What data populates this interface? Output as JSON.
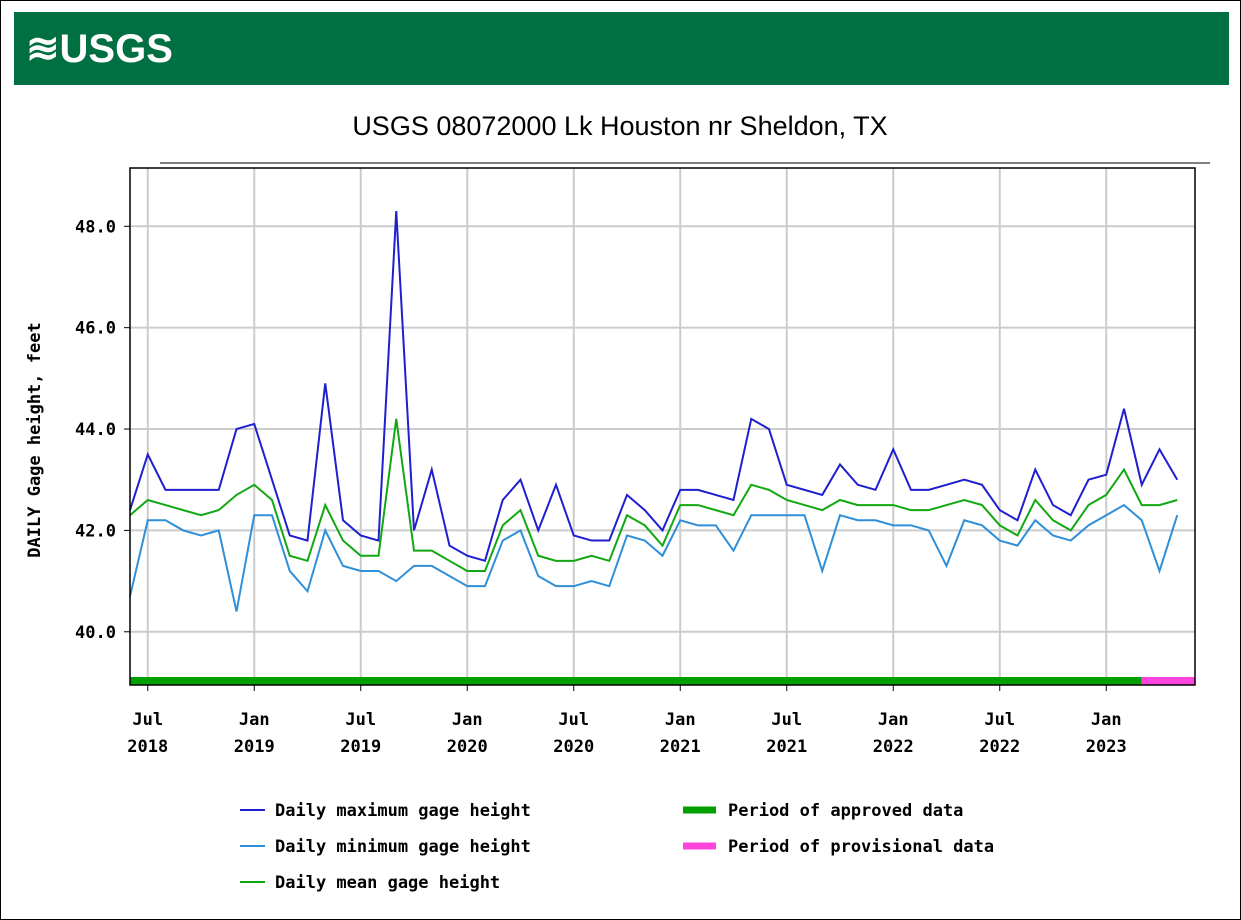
{
  "header": {
    "logo": "≋USGS"
  },
  "chart_data": {
    "type": "line",
    "title": "USGS 08072000 Lk Houston nr Sheldon, TX",
    "ylabel": "DAILY Gage height, feet",
    "x": [
      "2018-06",
      "2018-07",
      "2018-08",
      "2018-09",
      "2018-10",
      "2018-11",
      "2018-12",
      "2019-01",
      "2019-02",
      "2019-03",
      "2019-04",
      "2019-05",
      "2019-06",
      "2019-07",
      "2019-08",
      "2019-09",
      "2019-10",
      "2019-11",
      "2019-12",
      "2020-01",
      "2020-02",
      "2020-03",
      "2020-04",
      "2020-05",
      "2020-06",
      "2020-07",
      "2020-08",
      "2020-09",
      "2020-10",
      "2020-11",
      "2020-12",
      "2021-01",
      "2021-02",
      "2021-03",
      "2021-04",
      "2021-05",
      "2021-06",
      "2021-07",
      "2021-08",
      "2021-09",
      "2021-10",
      "2021-11",
      "2021-12",
      "2022-01",
      "2022-02",
      "2022-03",
      "2022-04",
      "2022-05",
      "2022-06",
      "2022-07",
      "2022-08",
      "2022-09",
      "2022-10",
      "2022-11",
      "2022-12",
      "2023-01",
      "2023-02",
      "2023-03",
      "2023-04",
      "2023-05"
    ],
    "series": [
      {
        "name": "Daily maximum gage height",
        "color": "#1f1fd0",
        "values": [
          42.4,
          43.5,
          42.8,
          42.8,
          42.8,
          42.8,
          44.0,
          44.1,
          43.0,
          41.9,
          41.8,
          44.9,
          42.2,
          41.9,
          41.8,
          48.3,
          42.0,
          43.2,
          41.7,
          41.5,
          41.4,
          42.6,
          43.0,
          42.0,
          42.9,
          41.9,
          41.8,
          41.8,
          42.7,
          42.4,
          42.0,
          42.8,
          42.8,
          42.7,
          42.6,
          44.2,
          44.0,
          42.9,
          42.8,
          42.7,
          43.3,
          42.9,
          42.8,
          43.6,
          42.8,
          42.8,
          42.9,
          43.0,
          42.9,
          42.4,
          42.2,
          43.2,
          42.5,
          42.3,
          43.0,
          43.1,
          44.4,
          42.9,
          43.6,
          43.0
        ]
      },
      {
        "name": "Daily minimum gage height",
        "color": "#2f8fd8",
        "values": [
          40.7,
          42.2,
          42.2,
          42.0,
          41.9,
          42.0,
          40.4,
          42.3,
          42.3,
          41.2,
          40.8,
          42.0,
          41.3,
          41.2,
          41.2,
          41.0,
          41.3,
          41.3,
          41.1,
          40.9,
          40.9,
          41.8,
          42.0,
          41.1,
          40.9,
          40.9,
          41.0,
          40.9,
          41.9,
          41.8,
          41.5,
          42.2,
          42.1,
          42.1,
          41.6,
          42.3,
          42.3,
          42.3,
          42.3,
          41.2,
          42.3,
          42.2,
          42.2,
          42.1,
          42.1,
          42.0,
          41.3,
          42.2,
          42.1,
          41.8,
          41.7,
          42.2,
          41.9,
          41.8,
          42.1,
          42.3,
          42.5,
          42.2,
          41.2,
          42.3
        ]
      },
      {
        "name": "Daily mean gage height",
        "color": "#11a811",
        "values": [
          42.3,
          42.6,
          42.5,
          42.4,
          42.3,
          42.4,
          42.7,
          42.9,
          42.6,
          41.5,
          41.4,
          42.5,
          41.8,
          41.5,
          41.5,
          44.2,
          41.6,
          41.6,
          41.4,
          41.2,
          41.2,
          42.1,
          42.4,
          41.5,
          41.4,
          41.4,
          41.5,
          41.4,
          42.3,
          42.1,
          41.7,
          42.5,
          42.5,
          42.4,
          42.3,
          42.9,
          42.8,
          42.6,
          42.5,
          42.4,
          42.6,
          42.5,
          42.5,
          42.5,
          42.4,
          42.4,
          42.5,
          42.6,
          42.5,
          42.1,
          41.9,
          42.6,
          42.2,
          42.0,
          42.5,
          42.7,
          43.2,
          42.5,
          42.5,
          42.6
        ]
      }
    ],
    "periods": [
      {
        "name": "Period of approved data",
        "color": "#00a000",
        "start": "2018-06",
        "end": "2023-03"
      },
      {
        "name": "Period of provisional data",
        "color": "#ff44dd",
        "start": "2023-03",
        "end": "2023-06"
      }
    ],
    "xlim": [
      "2018-06",
      "2023-06"
    ],
    "xticks": [
      {
        "value": "2018-07",
        "label": [
          "Jul",
          "2018"
        ]
      },
      {
        "value": "2019-01",
        "label": [
          "Jan",
          "2019"
        ]
      },
      {
        "value": "2019-07",
        "label": [
          "Jul",
          "2019"
        ]
      },
      {
        "value": "2020-01",
        "label": [
          "Jan",
          "2020"
        ]
      },
      {
        "value": "2020-07",
        "label": [
          "Jul",
          "2020"
        ]
      },
      {
        "value": "2021-01",
        "label": [
          "Jan",
          "2021"
        ]
      },
      {
        "value": "2021-07",
        "label": [
          "Jul",
          "2021"
        ]
      },
      {
        "value": "2022-01",
        "label": [
          "Jan",
          "2022"
        ]
      },
      {
        "value": "2022-07",
        "label": [
          "Jul",
          "2022"
        ]
      },
      {
        "value": "2023-01",
        "label": [
          "Jan",
          "2023"
        ]
      }
    ],
    "ylim": [
      38.95,
      49.15
    ],
    "yticks": [
      {
        "value": 40,
        "label": "40.0"
      },
      {
        "value": 42,
        "label": "42.0"
      },
      {
        "value": 44,
        "label": "44.0"
      },
      {
        "value": 46,
        "label": "46.0"
      },
      {
        "value": 48,
        "label": "48.0"
      }
    ],
    "grid": true
  }
}
